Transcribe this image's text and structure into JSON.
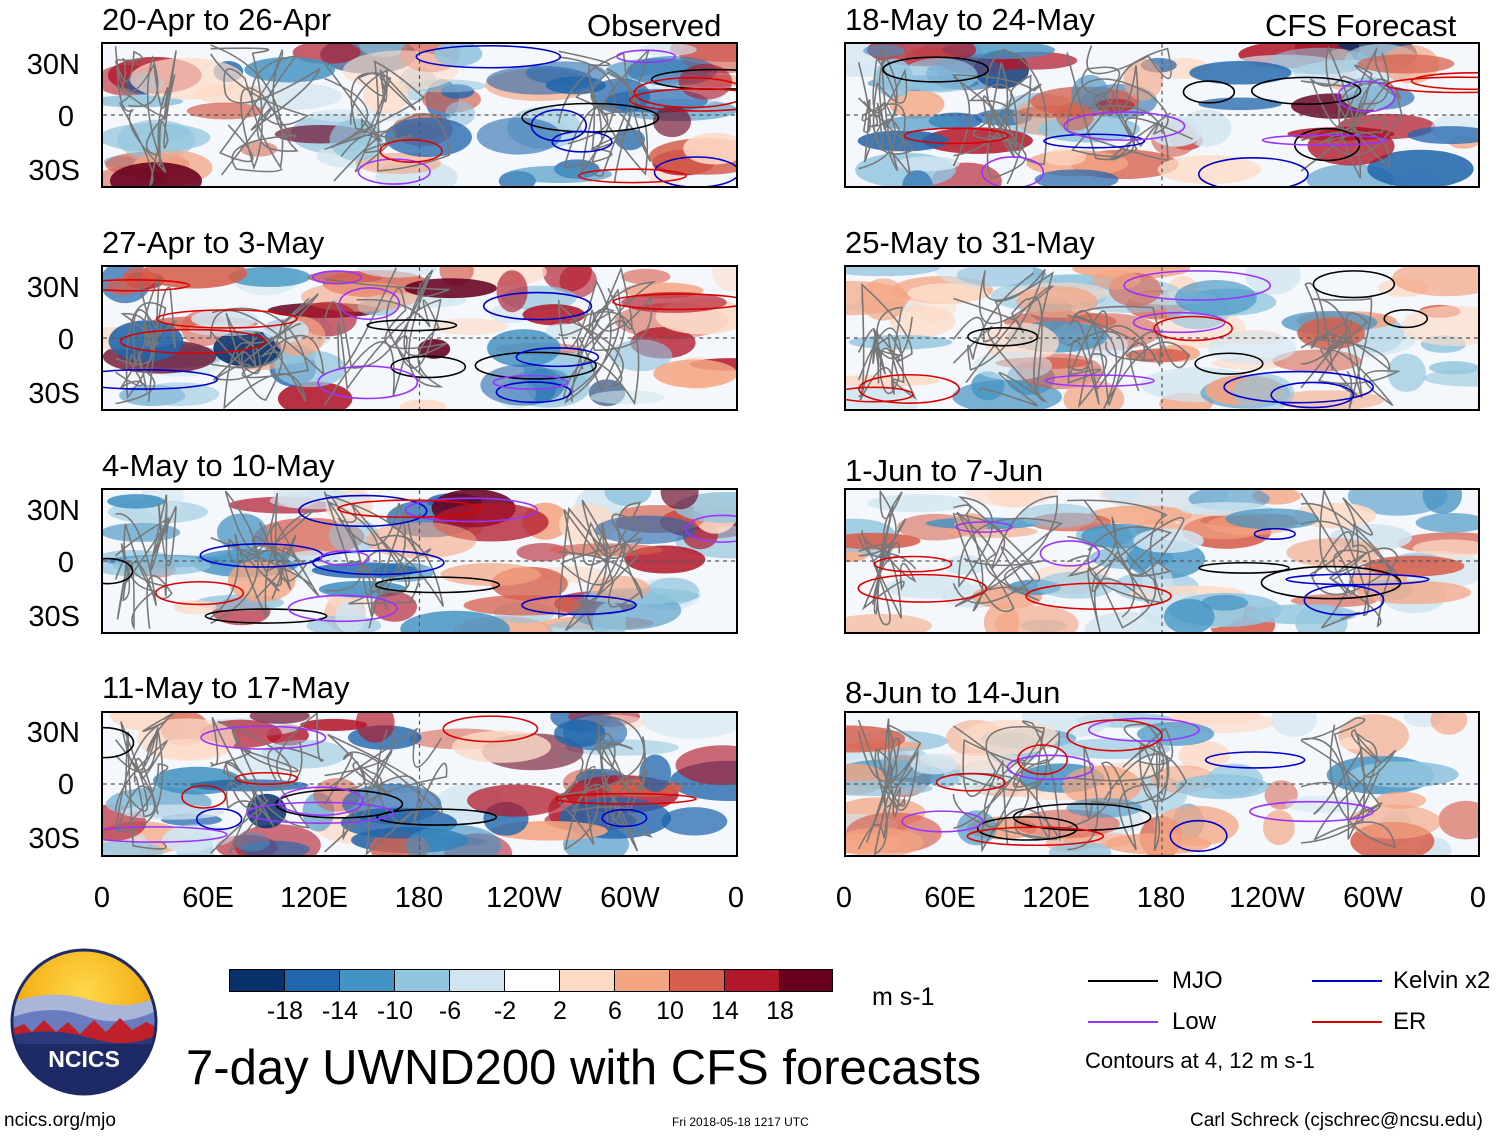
{
  "figure": {
    "title": "7-day UWND200 with CFS forecasts",
    "url": "ncics.org/mjo",
    "timestamp": "Fri 2018-05-18 1217 UTC",
    "credit": "Carl Schreck (cjschrec@ncsu.edu)",
    "logo_text": "NCICS"
  },
  "columns": {
    "observed_label": "Observed",
    "forecast_label": "CFS Forecast"
  },
  "panels": {
    "observed": [
      {
        "period": "20-Apr to 26-Apr"
      },
      {
        "period": "27-Apr to 3-May"
      },
      {
        "period": "4-May to 10-May"
      },
      {
        "period": "11-May to 17-May"
      }
    ],
    "forecast": [
      {
        "period": "18-May to 24-May"
      },
      {
        "period": "25-May to 31-May"
      },
      {
        "period": "1-Jun to 7-Jun"
      },
      {
        "period": "8-Jun to 14-Jun"
      }
    ]
  },
  "axes": {
    "lat_labels": [
      "30N",
      "0",
      "30S"
    ],
    "lon_labels": [
      "0",
      "60E",
      "120E",
      "180",
      "120W",
      "60W",
      "0"
    ]
  },
  "colorbar": {
    "units": "m s-1",
    "tick_labels": [
      "-18",
      "-14",
      "-10",
      "-6",
      "-2",
      "2",
      "6",
      "10",
      "14",
      "18"
    ],
    "colors": [
      "#08306b",
      "#2166ac",
      "#4393c3",
      "#92c5de",
      "#d1e5f0",
      "#ffffff",
      "#fddbc7",
      "#f4a582",
      "#d6604d",
      "#b2182b",
      "#67001f"
    ]
  },
  "legend": {
    "items": [
      {
        "label": "MJO",
        "color": "#000000"
      },
      {
        "label": "Kelvin x2",
        "color": "#0000cc"
      },
      {
        "label": "Low",
        "color": "#9933ff"
      },
      {
        "label": "ER",
        "color": "#dd0000"
      }
    ],
    "note": "Contours at 4, 12 m s-1"
  }
}
